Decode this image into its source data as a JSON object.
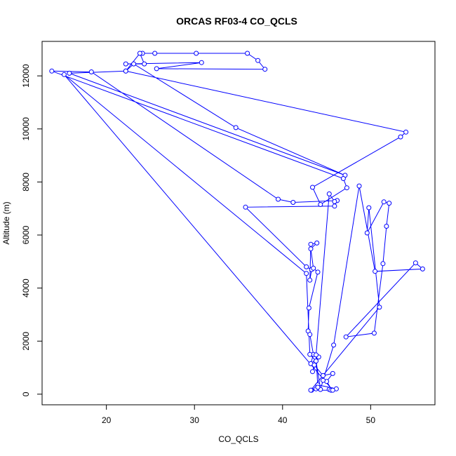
{
  "chart_data": {
    "type": "line",
    "title": "ORCAS RF03-4 CO_QCLS",
    "xlabel": "CO_QCLS",
    "ylabel": "Altitude (m)",
    "xlim": [
      12.7,
      57.3
    ],
    "ylim": [
      -400,
      13300
    ],
    "xticks": [
      20,
      30,
      40,
      50
    ],
    "yticks": [
      0,
      2000,
      4000,
      6000,
      8000,
      10000,
      12000
    ],
    "grid": false,
    "legend": "none",
    "line_color": "#0000ff",
    "marker": "open-circle",
    "series": [
      {
        "x": [
          24.1,
          25.5,
          30.2,
          36.0,
          37.2,
          38.0,
          25.7,
          30.8,
          22.2,
          24.3,
          23.8,
          22.2,
          23.1,
          34.7,
          47.1,
          15.8,
          22.2,
          54.0,
          53.4,
          43.4,
          44.3,
          47.3,
          46.9,
          13.8,
          18.3,
          39.5,
          41.2,
          46.2,
          45.9,
          35.8,
          42.7,
          43.3,
          43.1,
          43.2,
          43.9,
          43.2,
          43.5,
          44.0,
          43.0,
          42.9,
          43.1,
          43.5,
          43.2,
          44.1,
          43.4,
          43.6,
          44.6,
          45.7,
          45.0,
          45.6,
          45.3,
          46.1,
          44.0,
          43.8,
          43.3,
          45.5,
          45.7,
          15.2,
          42.7,
          43.1,
          43.8,
          44.3,
          44.6,
          45.8,
          48.7,
          50.5,
          55.9,
          55.1,
          47.2,
          50.4,
          51.4,
          51.8,
          52.1,
          51.5,
          49.6,
          49.8,
          51.0,
          43.2,
          44.0,
          43.8,
          45.3,
          45.9
        ],
        "y": [
          12850,
          12850,
          12850,
          12850,
          12580,
          12250,
          12270,
          12500,
          12450,
          12450,
          12850,
          12180,
          12450,
          10050,
          8250,
          12100,
          12180,
          9880,
          9700,
          7800,
          7150,
          7780,
          8130,
          12180,
          12150,
          7350,
          7230,
          7300,
          7090,
          7050,
          4800,
          4700,
          4300,
          5650,
          5700,
          5480,
          4750,
          4600,
          3250,
          2380,
          2250,
          1500,
          1150,
          1400,
          850,
          1100,
          700,
          780,
          480,
          160,
          180,
          200,
          350,
          200,
          150,
          150,
          150,
          12050,
          4550,
          1500,
          1250,
          180,
          520,
          1850,
          7850,
          4630,
          4720,
          4950,
          2160,
          2300,
          4920,
          6330,
          7200,
          7250,
          6080,
          7030,
          3280,
          150,
          260,
          1480,
          7550,
          7260
        ]
      }
    ]
  }
}
